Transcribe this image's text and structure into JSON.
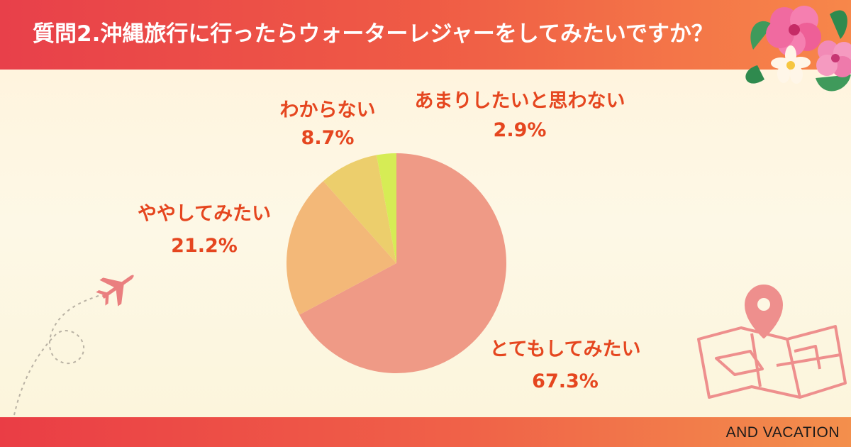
{
  "header": {
    "title": "質問2.沖縄旅行に行ったらウォーターレジャーをしてみたいですか？"
  },
  "footer": {
    "brand": "AND VACATION"
  },
  "chart_data": {
    "type": "pie",
    "title": "質問2.沖縄旅行に行ったらウォーターレジャーをしてみたいですか？",
    "start": "12 o'clock, clockwise",
    "slices": [
      {
        "label": "とてもしてみたい",
        "value": 67.3,
        "value_label": "67.3%",
        "color": "#ef9a86"
      },
      {
        "label": "ややしてみたい",
        "value": 21.2,
        "value_label": "21.2%",
        "color": "#f3b878"
      },
      {
        "label": "わからない",
        "value": 8.7,
        "value_label": "8.7%",
        "color": "#ecce6c"
      },
      {
        "label": "あまりしたいと思わない",
        "value": 2.9,
        "value_label": "2.9%",
        "color": "#d6ec55"
      }
    ]
  },
  "decorations": {
    "top_right": "hibiscus-flowers-icon",
    "left": "airplane-icon",
    "bottom_right": "map-pin-icon"
  }
}
